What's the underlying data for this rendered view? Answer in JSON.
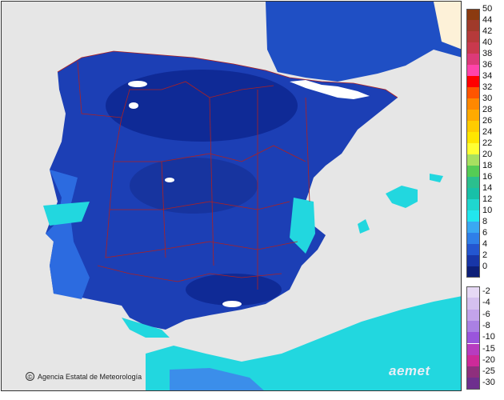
{
  "map": {
    "credit": "Agencia Estatal de Meteorología",
    "logo": "aemet",
    "colors": {
      "sea": "#e6e6e6",
      "land_outside": "#fdf1d8",
      "deep_blue": "#0a1f8a",
      "blue": "#1c3fb5",
      "mid_blue": "#2c6be0",
      "light_blue": "#3b8eea",
      "cyan": "#22d7df",
      "teal": "#19c9c3",
      "border_lines": "#b02020",
      "cold_spots": "#ffffff"
    }
  },
  "legend": {
    "positive": [
      {
        "label": "50",
        "color": "#8b3a10"
      },
      {
        "label": "44",
        "color": "#a03a2a"
      },
      {
        "label": "42",
        "color": "#b63a3a"
      },
      {
        "label": "40",
        "color": "#c9394d"
      },
      {
        "label": "38",
        "color": "#dc3a78"
      },
      {
        "label": "36",
        "color": "#ff44aa"
      },
      {
        "label": "34",
        "color": "#ff0000"
      },
      {
        "label": "32",
        "color": "#ff5500"
      },
      {
        "label": "30",
        "color": "#ff8800"
      },
      {
        "label": "28",
        "color": "#ffaa00"
      },
      {
        "label": "26",
        "color": "#ffcc00"
      },
      {
        "label": "24",
        "color": "#ffe600"
      },
      {
        "label": "22",
        "color": "#ffff33"
      },
      {
        "label": "20",
        "color": "#a8e060"
      },
      {
        "label": "18",
        "color": "#55cc55"
      },
      {
        "label": "16",
        "color": "#2bbf8e"
      },
      {
        "label": "14",
        "color": "#18c0a8"
      },
      {
        "label": "12",
        "color": "#1fd6cf"
      },
      {
        "label": "10",
        "color": "#22e6ee"
      },
      {
        "label": "8",
        "color": "#3aa8f2"
      },
      {
        "label": "6",
        "color": "#2f7fe8"
      },
      {
        "label": "4",
        "color": "#2456d0"
      },
      {
        "label": "2",
        "color": "#1836a8"
      },
      {
        "label": "0",
        "color": "#0d1f78"
      }
    ],
    "negative": [
      {
        "label": "-2",
        "color": "#e6d9f5"
      },
      {
        "label": "-4",
        "color": "#d5c0ef"
      },
      {
        "label": "-6",
        "color": "#c3a3ea"
      },
      {
        "label": "-8",
        "color": "#aa80e3"
      },
      {
        "label": "-10",
        "color": "#9a55dc"
      },
      {
        "label": "-15",
        "color": "#b73cc0"
      },
      {
        "label": "-20",
        "color": "#cc2a99"
      },
      {
        "label": "-25",
        "color": "#8e2f7d"
      },
      {
        "label": "-30",
        "color": "#6e2f8e"
      }
    ]
  }
}
